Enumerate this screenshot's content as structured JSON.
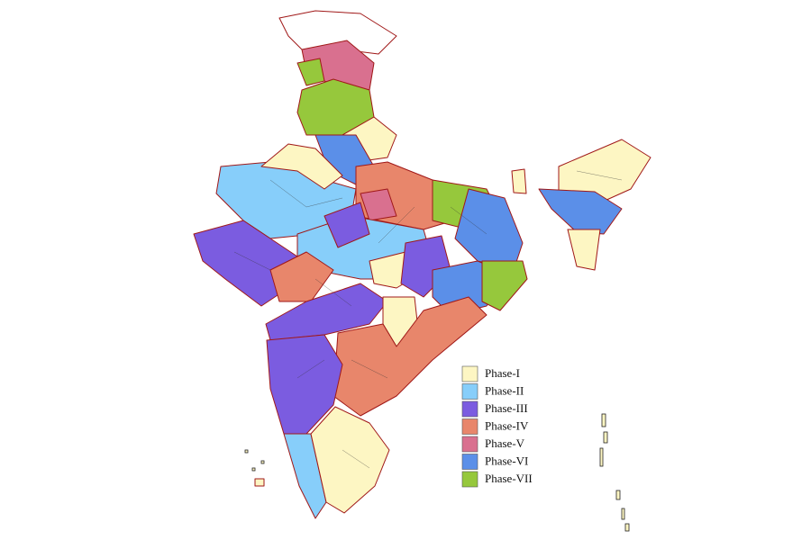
{
  "legend": [
    {
      "label": "Phase-I",
      "color": "#fdf6c3"
    },
    {
      "label": "Phase-II",
      "color": "#87cefa"
    },
    {
      "label": "Phase-III",
      "color": "#7b5ce0"
    },
    {
      "label": "Phase-IV",
      "color": "#e8866b"
    },
    {
      "label": "Phase-V",
      "color": "#d9708f"
    },
    {
      "label": "Phase-VI",
      "color": "#5b8fe8"
    },
    {
      "label": "Phase-VII",
      "color": "#96c83c"
    }
  ]
}
